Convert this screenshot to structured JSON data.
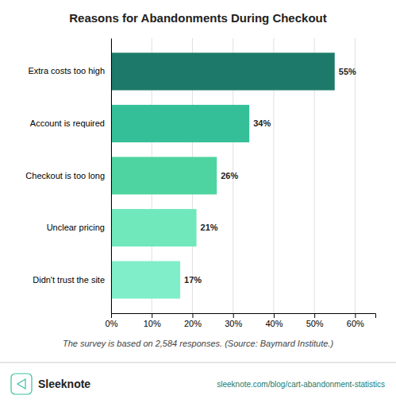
{
  "chart_data": {
    "type": "bar",
    "orientation": "horizontal",
    "title": "Reasons for Abandonments During Checkout",
    "categories": [
      "Didn't trust the site",
      "Unclear pricing",
      "Checkout is too long",
      "Account is required",
      "Extra costs too high"
    ],
    "values": [
      17,
      21,
      26,
      34,
      55
    ],
    "value_labels": [
      "17%",
      "21%",
      "26%",
      "34%",
      "55%"
    ],
    "colors": [
      "#80EEC8",
      "#70E8BC",
      "#4ED4A0",
      "#35BF98",
      "#1D7A6A"
    ],
    "xlim": [
      0,
      65
    ],
    "xticks": [
      {
        "value": 0,
        "label": "0%"
      },
      {
        "value": 10,
        "label": "10%"
      },
      {
        "value": 20,
        "label": "20%"
      },
      {
        "value": 30,
        "label": "30%"
      },
      {
        "value": 40,
        "label": "40%"
      },
      {
        "value": 50,
        "label": "50%"
      },
      {
        "value": 60,
        "label": "60%"
      }
    ],
    "grid": true,
    "data_labels": true,
    "annotations": [
      "The survey is based on 2,584 responses. (Source: Baymard Institute.)",
      "Sleeknote",
      "sleeknote.com/blog/cart-abandonment-statistics"
    ]
  }
}
